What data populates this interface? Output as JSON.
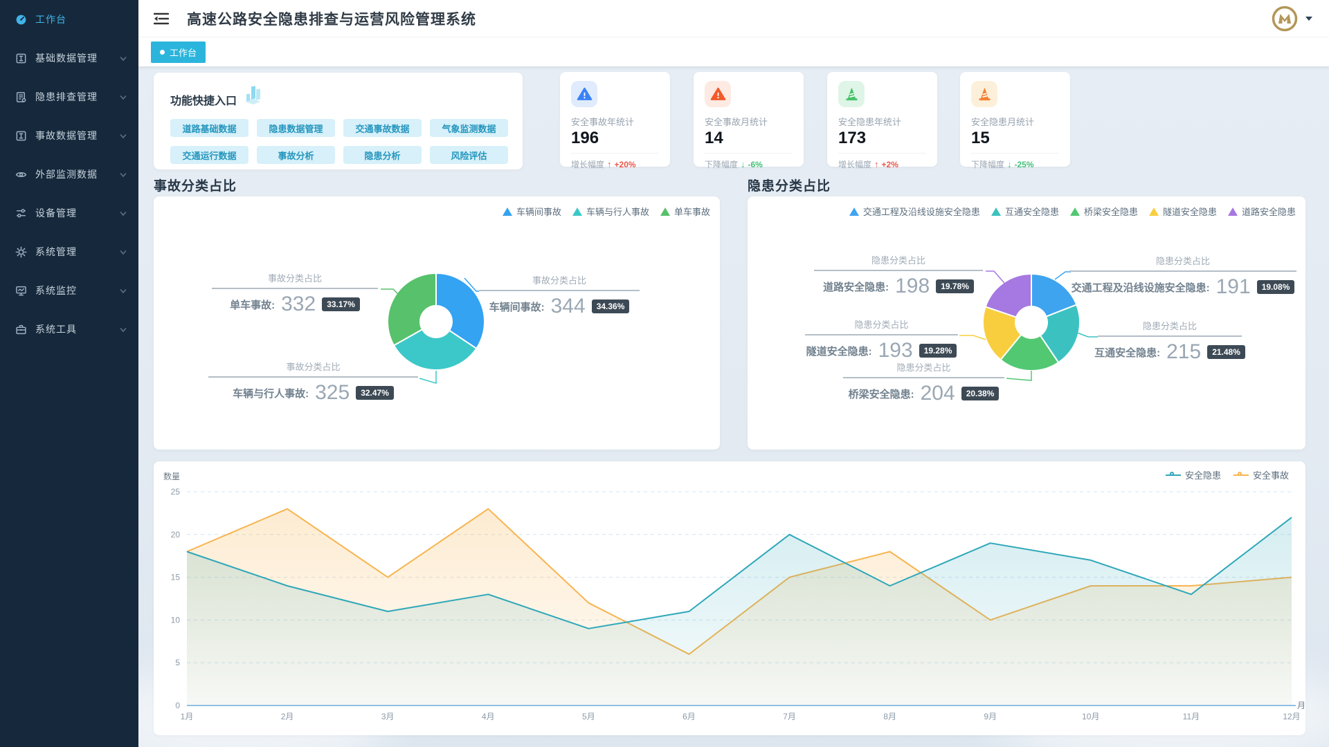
{
  "header": {
    "title": "高速公路安全隐患排查与运营风险管理系统"
  },
  "tabs": [
    {
      "label": "工作台",
      "active": true
    }
  ],
  "user": {
    "avatar_logo": "gold-monogram-logo"
  },
  "theme": {
    "accent": "#2bb5dc",
    "sidebar_bg": "#16293c",
    "up_color": "#e8584b",
    "down_color": "#43c078"
  },
  "sidebar": {
    "items": [
      {
        "label": "工作台",
        "icon": "dashboard-icon",
        "active": true,
        "expandable": false
      },
      {
        "label": "基础数据管理",
        "icon": "data-box-icon",
        "active": false,
        "expandable": true
      },
      {
        "label": "隐患排查管理",
        "icon": "inspection-doc-icon",
        "active": false,
        "expandable": true
      },
      {
        "label": "事故数据管理",
        "icon": "data-box-icon",
        "active": false,
        "expandable": true
      },
      {
        "label": "外部监测数据",
        "icon": "eye-icon",
        "active": false,
        "expandable": true
      },
      {
        "label": "设备管理",
        "icon": "sliders-icon",
        "active": false,
        "expandable": true
      },
      {
        "label": "系统管理",
        "icon": "gear-icon",
        "active": false,
        "expandable": true
      },
      {
        "label": "系统监控",
        "icon": "monitor-icon",
        "active": false,
        "expandable": true
      },
      {
        "label": "系统工具",
        "icon": "toolbox-icon",
        "active": false,
        "expandable": true
      }
    ]
  },
  "quick_entry": {
    "title": "功能快捷入口",
    "title_icon": "buildings-icon",
    "buttons": [
      "道路基础数据",
      "隐患数据管理",
      "交通事故数据",
      "气象监测数据",
      "交通运行数据",
      "事故分析",
      "隐患分析",
      "风险评估"
    ]
  },
  "stat_cards": [
    {
      "label": "安全事故年统计",
      "value": "196",
      "icon": "warning-triangle-icon",
      "icon_color": "#3b82f6",
      "icon_bg": "#e0ecfd",
      "trend_label": "增长幅度",
      "trend_value": "+20%",
      "trend": "up"
    },
    {
      "label": "安全事故月统计",
      "value": "14",
      "icon": "warning-triangle-icon",
      "icon_color": "#f25a29",
      "icon_bg": "#fdeae2",
      "trend_label": "下降幅度",
      "trend_value": "-6%",
      "trend": "down"
    },
    {
      "label": "安全隐患年统计",
      "value": "173",
      "icon": "traffic-cone-icon",
      "icon_color": "#47c269",
      "icon_bg": "#dff5e7",
      "trend_label": "增长幅度",
      "trend_value": "+2%",
      "trend": "up"
    },
    {
      "label": "安全隐患月统计",
      "value": "15",
      "icon": "traffic-cone-icon",
      "icon_color": "#f58234",
      "icon_bg": "#fdf0da",
      "trend_label": "下降幅度",
      "trend_value": "-25%",
      "trend": "down"
    }
  ],
  "sections": {
    "accident_pie_title": "事故分类占比",
    "hazard_pie_title": "隐患分类占比"
  },
  "chart_data": [
    {
      "type": "pie",
      "title": "事故分类占比",
      "callout_title": "事故分类占比",
      "legend_position": "top-right",
      "donut": true,
      "slices": [
        {
          "name": "车辆间事故",
          "value": 344,
          "pct": 34.36,
          "pct_label": "34.36%",
          "color": "#33a3f2"
        },
        {
          "name": "车辆与行人事故",
          "value": 325,
          "pct": 32.47,
          "pct_label": "32.47%",
          "color": "#3cc8c8"
        },
        {
          "name": "单车事故",
          "value": 332,
          "pct": 33.17,
          "pct_label": "33.17%",
          "color": "#57c16b"
        }
      ]
    },
    {
      "type": "pie",
      "title": "隐患分类占比",
      "callout_title": "隐患分类占比",
      "legend_position": "top-right",
      "donut": true,
      "slices": [
        {
          "name": "交通工程及沿线设施安全隐患",
          "value": 191,
          "pct": 19.08,
          "pct_label": "19.08%",
          "color": "#3ea4f0"
        },
        {
          "name": "互通安全隐患",
          "value": 215,
          "pct": 21.48,
          "pct_label": "21.48%",
          "color": "#3bc2c0"
        },
        {
          "name": "桥梁安全隐患",
          "value": 204,
          "pct": 20.38,
          "pct_label": "20.38%",
          "color": "#52c873"
        },
        {
          "name": "隧道安全隐患",
          "value": 193,
          "pct": 19.28,
          "pct_label": "19.28%",
          "color": "#f8ce3f"
        },
        {
          "name": "道路安全隐患",
          "value": 198,
          "pct": 19.78,
          "pct_label": "19.78%",
          "color": "#a678e1"
        }
      ]
    },
    {
      "type": "line",
      "title": "",
      "ylabel": "数量",
      "xname": "月",
      "ylim": [
        0,
        25
      ],
      "y_ticks": [
        0,
        5,
        10,
        15,
        20,
        25
      ],
      "grid": true,
      "legend_position": "top-right",
      "categories": [
        "1月",
        "2月",
        "3月",
        "4月",
        "5月",
        "6月",
        "7月",
        "8月",
        "9月",
        "10月",
        "11月",
        "12月"
      ],
      "series": [
        {
          "name": "安全隐患",
          "color": "#2ea7b9",
          "values": [
            18,
            14,
            11,
            13,
            9,
            11,
            20,
            14,
            19,
            17,
            13,
            22
          ]
        },
        {
          "name": "安全事故",
          "color": "#f7b44f",
          "values": [
            18,
            23,
            15,
            23,
            12,
            6,
            15,
            18,
            10,
            14,
            14,
            15
          ]
        }
      ]
    }
  ]
}
